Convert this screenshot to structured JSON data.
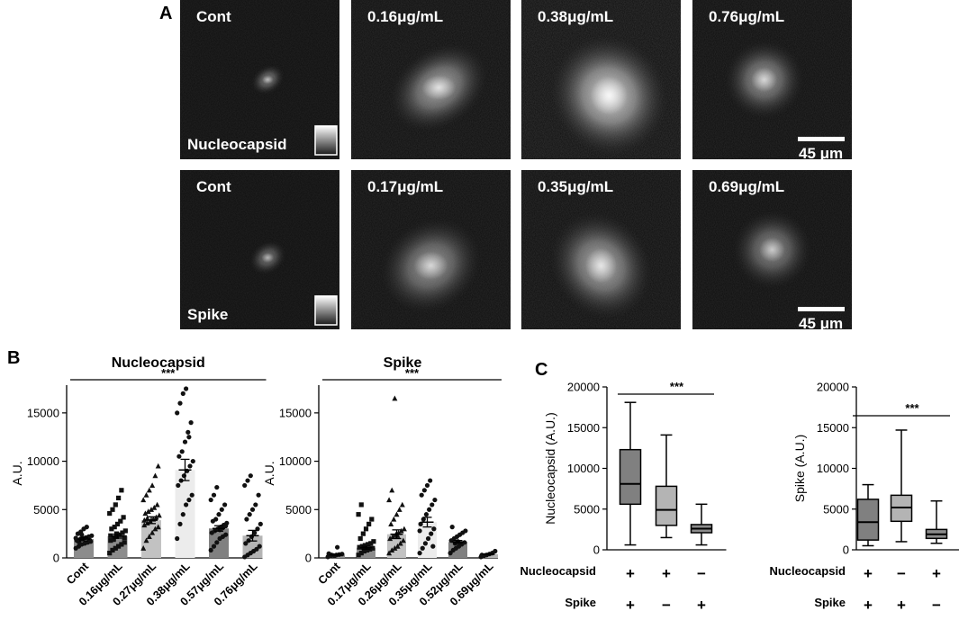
{
  "panel_letters": {
    "a": "A",
    "b": "B",
    "c": "C"
  },
  "micrographs": {
    "rows": [
      {
        "tiles": [
          {
            "label": "Cont",
            "brightness": 0.25
          },
          {
            "label": "0.16μg/mL",
            "brightness": 0.55
          },
          {
            "label": "0.38μg/mL",
            "brightness": 0.85
          },
          {
            "label": "0.76μg/mL",
            "brightness": 0.45
          }
        ],
        "stain_label": "Nucleocapsid",
        "scale_label": "45 μm"
      },
      {
        "tiles": [
          {
            "label": "Cont",
            "brightness": 0.2
          },
          {
            "label": "0.17μg/mL",
            "brightness": 0.45
          },
          {
            "label": "0.35μg/mL",
            "brightness": 0.6
          },
          {
            "label": "0.69μg/mL",
            "brightness": 0.35
          }
        ],
        "stain_label": "Spike",
        "scale_label": "45 μm"
      }
    ]
  },
  "chart_data": [
    {
      "type": "bar",
      "title": "Nucleocapsid",
      "ylabel": "A.U.",
      "ylim": [
        0,
        17500
      ],
      "yticks": [
        0,
        5000,
        10000,
        15000
      ],
      "categories": [
        "Cont",
        "0.16μg/mL",
        "0.27μg/mL",
        "0.38μg/mL",
        "0.57μg/mL",
        "0.76μg/mL"
      ],
      "values": [
        1950,
        2250,
        3900,
        9100,
        3050,
        2300
      ],
      "errors": [
        180,
        200,
        350,
        1100,
        280,
        550
      ],
      "bar_colors": [
        "#8c8c8c",
        "#8c8c8c",
        "#c2c2c2",
        "#ececec",
        "#808080",
        "#b4b4b4"
      ],
      "significance": "***",
      "points": [
        [
          1000,
          1200,
          1400,
          1500,
          1600,
          1700,
          1800,
          1900,
          2000,
          2100,
          2200,
          2300,
          2500,
          2700,
          3000,
          3200,
          1850,
          2050,
          1650,
          2400
        ],
        [
          500,
          800,
          1000,
          1200,
          1400,
          1600,
          1800,
          2000,
          2200,
          2400,
          2600,
          2800,
          3000,
          3200,
          3500,
          3800,
          4200,
          4600,
          5000,
          5500,
          6200,
          7000,
          2100,
          2300,
          1900,
          2500
        ],
        [
          1000,
          1800,
          2200,
          2600,
          3000,
          3200,
          3400,
          3600,
          3800,
          4000,
          4200,
          4400,
          4600,
          4800,
          5000,
          5200,
          5500,
          6000,
          6500,
          7000,
          7500,
          8500,
          9500,
          3900,
          4100
        ],
        [
          2000,
          3500,
          4500,
          5500,
          6000,
          6500,
          7500,
          8000,
          8500,
          9000,
          9500,
          10000,
          10500,
          11000,
          12000,
          13000,
          14000,
          15000,
          16000,
          17000,
          17500,
          12500
        ],
        [
          800,
          1200,
          1600,
          2000,
          2200,
          2400,
          2600,
          2800,
          3000,
          3200,
          3400,
          3600,
          3800,
          4000,
          4500,
          5000,
          5500,
          6000,
          6500,
          7300,
          2900,
          3100,
          3300
        ],
        [
          100,
          300,
          500,
          700,
          900,
          1200,
          1500,
          1800,
          2200,
          2600,
          3000,
          3500,
          4000,
          4500,
          5000,
          5500,
          6500,
          7500,
          8000,
          8500
        ]
      ]
    },
    {
      "type": "bar",
      "title": "Spike",
      "ylabel": "A.U.",
      "ylim": [
        0,
        17500
      ],
      "yticks": [
        0,
        5000,
        10000,
        15000
      ],
      "categories": [
        "Cont",
        "0.17μg/mL",
        "0.26μg/mL",
        "0.35μg/mL",
        "0.52μg/mL",
        "0.69μg/mL"
      ],
      "values": [
        320,
        1050,
        2450,
        3700,
        1650,
        380
      ],
      "errors": [
        50,
        150,
        450,
        500,
        150,
        50
      ],
      "bar_colors": [
        "#8c8c8c",
        "#8c8c8c",
        "#c2c2c2",
        "#ececec",
        "#808080",
        "#b4b4b4"
      ],
      "significance": "***",
      "points": [
        [
          100,
          200,
          250,
          300,
          350,
          400,
          450,
          300,
          200,
          1100
        ],
        [
          300,
          500,
          700,
          800,
          900,
          1000,
          1100,
          1200,
          1300,
          1400,
          1500,
          1700,
          2000,
          2500,
          3000,
          3500,
          4000,
          4500,
          5500,
          1050
        ],
        [
          500,
          800,
          1000,
          1200,
          1500,
          1800,
          2000,
          2200,
          2400,
          2600,
          2800,
          3000,
          3500,
          4000,
          4500,
          5000,
          5500,
          6000,
          7000,
          16500,
          2300
        ],
        [
          500,
          1000,
          1500,
          2000,
          2500,
          3000,
          3500,
          4000,
          4500,
          5000,
          5500,
          6000,
          6500,
          7000,
          7500,
          8000,
          1200,
          2800
        ],
        [
          500,
          800,
          1000,
          1200,
          1400,
          1600,
          1800,
          2000,
          2200,
          2400,
          2600,
          2800,
          3200,
          1500,
          1700
        ],
        [
          100,
          200,
          300,
          400,
          500,
          700,
          300
        ]
      ]
    },
    {
      "type": "box",
      "ylabel": "Nucleocapsid (A.U.)",
      "ylim": [
        0,
        20000
      ],
      "yticks": [
        0,
        5000,
        10000,
        15000,
        20000
      ],
      "boxes": [
        {
          "min": 600,
          "q1": 5600,
          "median": 8100,
          "q3": 12300,
          "max": 18100,
          "color": "#808080"
        },
        {
          "min": 1500,
          "q1": 3000,
          "median": 4900,
          "q3": 7800,
          "max": 14100,
          "color": "#b4b4b4"
        },
        {
          "min": 600,
          "q1": 2100,
          "median": 2600,
          "q3": 3100,
          "max": 5600,
          "color": "#8c8c8c"
        }
      ],
      "row_labels": [
        "Nucleocapsid",
        "Spike"
      ],
      "signs": [
        [
          "+",
          "+",
          "−"
        ],
        [
          "+",
          "−",
          "+"
        ]
      ],
      "significance": "***"
    },
    {
      "type": "box",
      "ylabel": "Spike (A.U.)",
      "ylim": [
        0,
        20000
      ],
      "yticks": [
        0,
        5000,
        10000,
        15000,
        20000
      ],
      "boxes": [
        {
          "min": 500,
          "q1": 1200,
          "median": 3400,
          "q3": 6200,
          "max": 8000,
          "color": "#808080"
        },
        {
          "min": 1000,
          "q1": 3500,
          "median": 5200,
          "q3": 6700,
          "max": 14700,
          "color": "#b4b4b4"
        },
        {
          "min": 800,
          "q1": 1400,
          "median": 1900,
          "q3": 2500,
          "max": 6000,
          "color": "#8c8c8c"
        }
      ],
      "row_labels": [
        "Nucleocapsid",
        "Spike"
      ],
      "signs": [
        [
          "+",
          "−",
          "+"
        ],
        [
          "+",
          "+",
          "−"
        ]
      ],
      "significance": "***"
    }
  ]
}
